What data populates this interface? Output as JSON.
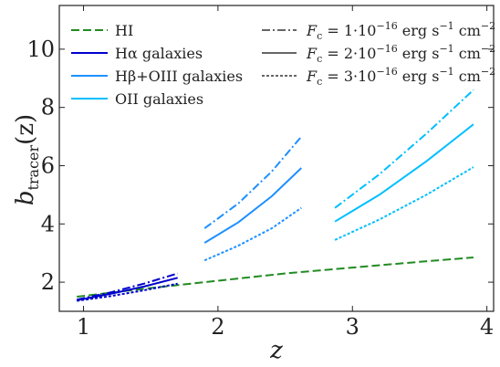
{
  "chart_data": {
    "type": "line",
    "xlabel": "z",
    "ylabel_main": "b",
    "ylabel_sub": "tracer",
    "ylabel_arg": "(z)",
    "xlim": [
      0.82,
      4.05
    ],
    "ylim": [
      1.0,
      11.5
    ],
    "xticks": [
      1,
      2,
      3,
      4
    ],
    "yticks": [
      2,
      4,
      6,
      8,
      10
    ],
    "legend_left": [
      {
        "label": "HI",
        "color": "#228B22",
        "dash": "dashed"
      },
      {
        "label": "Hα galaxies",
        "color": "#0000CD",
        "dash": "solid"
      },
      {
        "label": "Hβ+OIII galaxies",
        "color": "#1E90FF",
        "dash": "solid"
      },
      {
        "label": "OII galaxies",
        "color": "#00BFFF",
        "dash": "solid"
      }
    ],
    "legend_right": [
      {
        "label": "F_c = 1·10^-16 erg s^-1 cm^-2",
        "fc_value": "1",
        "dash": "dashdot"
      },
      {
        "label": "F_c = 2·10^-16 erg s^-1 cm^-2",
        "fc_value": "2",
        "dash": "solid"
      },
      {
        "label": "F_c = 3·10^-16 erg s^-1 cm^-2",
        "fc_value": "3",
        "dash": "dotted"
      }
    ],
    "series": [
      {
        "name": "HI",
        "color": "#228B22",
        "dash": "dashed",
        "x": [
          0.95,
          1.5,
          2.0,
          2.5,
          3.0,
          3.5,
          3.9
        ],
        "y": [
          1.5,
          1.8,
          2.05,
          2.3,
          2.5,
          2.7,
          2.85
        ]
      },
      {
        "name": "Hα galaxies",
        "fc": 1,
        "color": "#0000CD",
        "dash": "dashdot",
        "x": [
          0.95,
          1.2,
          1.45,
          1.7
        ],
        "y": [
          1.4,
          1.65,
          1.95,
          2.3
        ]
      },
      {
        "name": "Hα galaxies",
        "fc": 2,
        "color": "#0000CD",
        "dash": "solid",
        "x": [
          0.95,
          1.2,
          1.45,
          1.7
        ],
        "y": [
          1.38,
          1.6,
          1.85,
          2.15
        ]
      },
      {
        "name": "Hα galaxies",
        "fc": 3,
        "color": "#0000CD",
        "dash": "dotted",
        "x": [
          0.95,
          1.2,
          1.45,
          1.7
        ],
        "y": [
          1.36,
          1.52,
          1.72,
          1.95
        ]
      },
      {
        "name": "Hβ+OIII galaxies",
        "fc": 1,
        "color": "#1E90FF",
        "dash": "dashdot",
        "x": [
          1.9,
          2.15,
          2.4,
          2.62
        ],
        "y": [
          3.85,
          4.7,
          5.8,
          7.0
        ]
      },
      {
        "name": "Hβ+OIII galaxies",
        "fc": 2,
        "color": "#1E90FF",
        "dash": "solid",
        "x": [
          1.9,
          2.15,
          2.4,
          2.62
        ],
        "y": [
          3.35,
          4.05,
          4.95,
          5.92
        ]
      },
      {
        "name": "Hβ+OIII galaxies",
        "fc": 3,
        "color": "#1E90FF",
        "dash": "dotted",
        "x": [
          1.9,
          2.15,
          2.4,
          2.62
        ],
        "y": [
          2.75,
          3.25,
          3.85,
          4.55
        ]
      },
      {
        "name": "OII galaxies",
        "fc": 1,
        "color": "#00BFFF",
        "dash": "dashdot",
        "x": [
          2.87,
          3.2,
          3.55,
          3.9
        ],
        "y": [
          4.55,
          5.7,
          7.1,
          8.6
        ]
      },
      {
        "name": "OII galaxies",
        "fc": 2,
        "color": "#00BFFF",
        "dash": "solid",
        "x": [
          2.87,
          3.2,
          3.55,
          3.9
        ],
        "y": [
          4.08,
          5.0,
          6.15,
          7.42
        ]
      },
      {
        "name": "OII galaxies",
        "fc": 3,
        "color": "#00BFFF",
        "dash": "dotted",
        "x": [
          2.87,
          3.2,
          3.55,
          3.9
        ],
        "y": [
          3.45,
          4.15,
          5.0,
          5.95
        ]
      }
    ]
  }
}
